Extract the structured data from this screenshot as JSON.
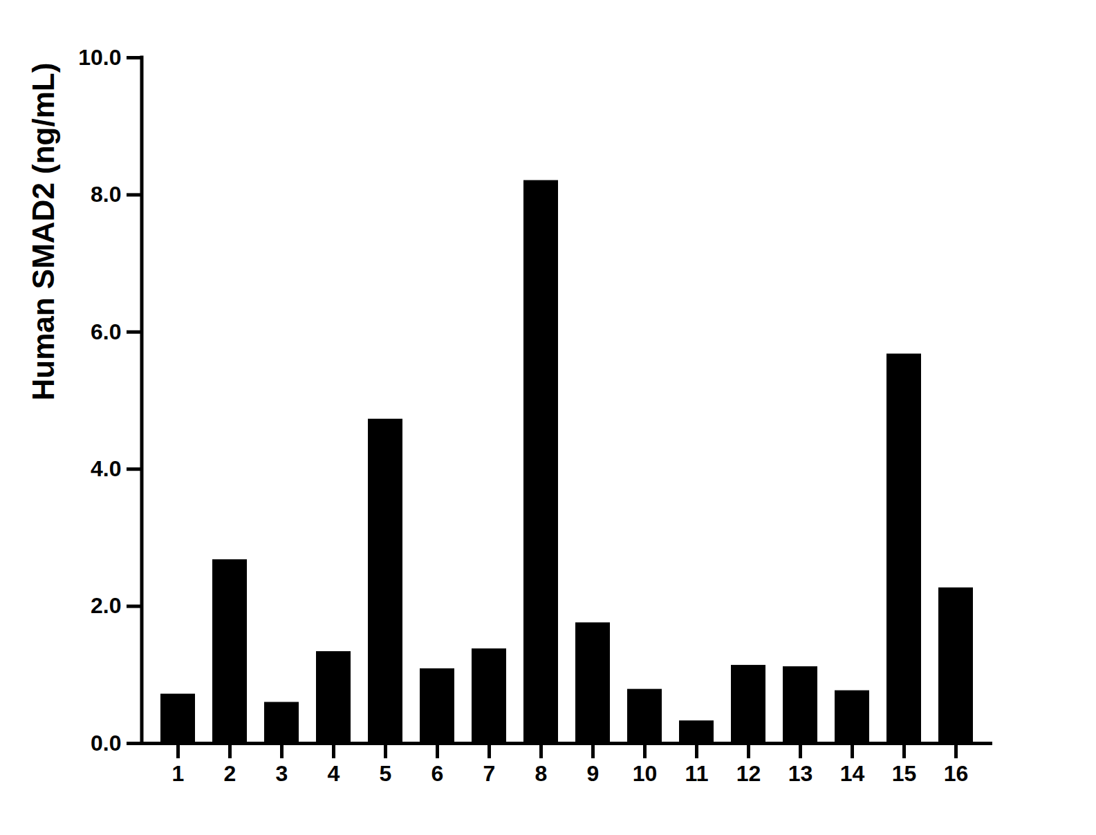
{
  "chart_data": {
    "type": "bar",
    "y_label": "Human SMAD2 (ng/mL)",
    "categories": [
      "1",
      "2",
      "3",
      "4",
      "5",
      "6",
      "7",
      "8",
      "9",
      "10",
      "11",
      "12",
      "13",
      "14",
      "15",
      "16"
    ],
    "values": [
      0.72,
      2.68,
      0.6,
      1.34,
      4.73,
      1.09,
      1.38,
      8.21,
      1.76,
      0.79,
      0.33,
      1.14,
      1.12,
      0.77,
      5.68,
      2.27
    ],
    "color": "#000000",
    "ylim": [
      0,
      10
    ],
    "yticks": [
      0,
      2,
      4,
      6,
      8,
      10
    ],
    "grid": false
  }
}
